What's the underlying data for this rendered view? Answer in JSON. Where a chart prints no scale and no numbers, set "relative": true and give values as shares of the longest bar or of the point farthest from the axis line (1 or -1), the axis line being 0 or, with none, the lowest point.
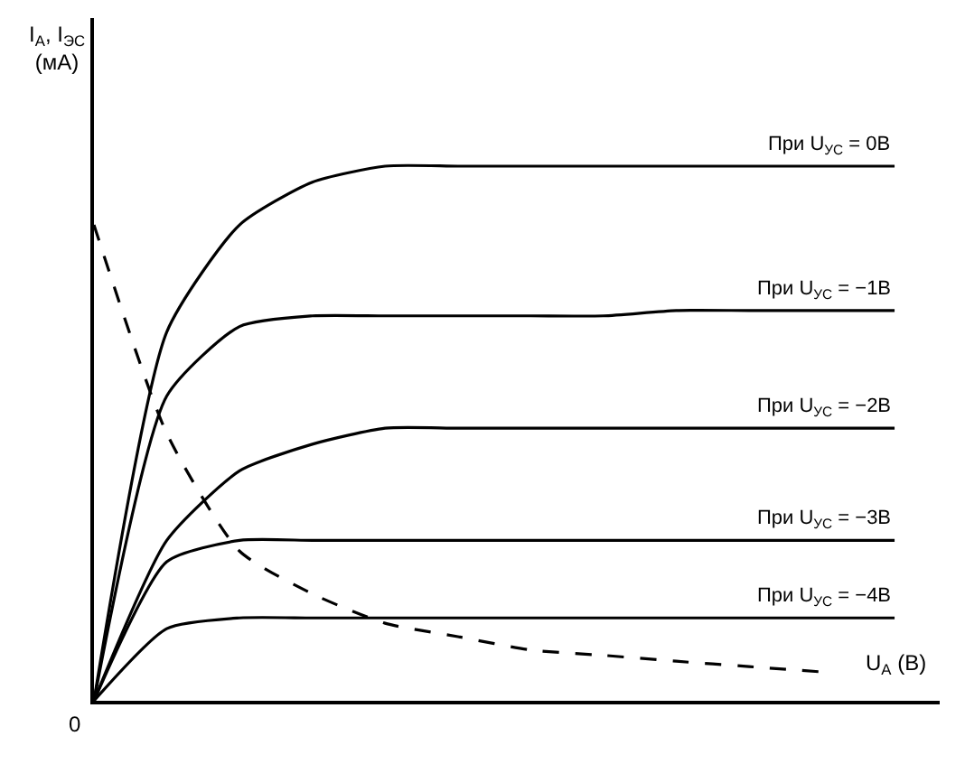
{
  "chart_data": {
    "type": "line",
    "relative": true,
    "xlabel": "U$_{A}$ (В)",
    "ylabel": "I$_{A}$, I$_{ЭС}$\n(мА)",
    "annotations": [
      "0"
    ],
    "legend": false,
    "marker": "none",
    "line_style": "solid",
    "categories": [
      null,
      null,
      null,
      null,
      null,
      null,
      null,
      null,
      null,
      null,
      null,
      null
    ],
    "series": [
      {
        "name": "При U$_{УС}$ = 0В",
        "color": "#000000",
        "values": [
          0,
          0.69,
          0.89,
          0.97,
          1,
          1,
          1,
          1,
          1,
          1,
          1,
          1
        ]
      },
      {
        "name": "При U$_{УС}$ = −1В",
        "color": "#000000",
        "values": [
          0,
          0.57,
          0.7,
          0.72,
          0.72,
          0.72,
          0.72,
          0.72,
          0.73,
          0.73,
          0.73,
          0.73
        ]
      },
      {
        "name": "При U$_{УС}$ = −2В",
        "color": "#000000",
        "values": [
          0,
          0.3,
          0.43,
          0.48,
          0.51,
          0.51,
          0.51,
          0.51,
          0.51,
          0.51,
          0.51,
          0.51
        ]
      },
      {
        "name": "При U$_{УС}$ = −3В",
        "color": "#000000",
        "values": [
          0,
          0.26,
          0.3,
          0.3,
          0.3,
          0.3,
          0.3,
          0.3,
          0.3,
          0.3,
          0.3,
          0.3
        ]
      },
      {
        "name": "При U$_{УС}$ = −4В",
        "color": "#000000",
        "values": [
          0,
          0.135,
          0.155,
          0.155,
          0.155,
          0.155,
          0.155,
          0.155,
          0.155,
          0.155,
          0.155,
          0.155
        ]
      },
      {
        "color": "#000000",
        "line_style": "dashed",
        "values": [
          0.89,
          0.5,
          0.28,
          0.2,
          0.145,
          0.12,
          0.095,
          0.085,
          0.074,
          0.064,
          0.054,
          null
        ]
      }
    ]
  }
}
